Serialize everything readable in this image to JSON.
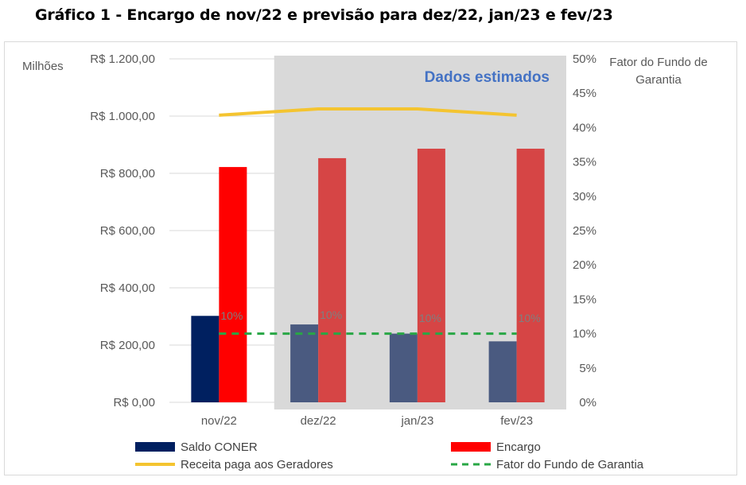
{
  "chart_data": {
    "type": "bar",
    "title": "Gráfico 1 - Encargo de nov/22 e previsão para dez/22, jan/23 e fev/23",
    "categories": [
      "nov/22",
      "dez/22",
      "jan/23",
      "fev/23"
    ],
    "left_axis": {
      "unit_label": "Milhões",
      "min": 0,
      "max": 1200,
      "step": 200,
      "tick_labels": [
        "R$ 0,00",
        "R$ 200,00",
        "R$ 400,00",
        "R$ 600,00",
        "R$ 800,00",
        "R$ 1.000,00",
        "R$ 1.200,00"
      ]
    },
    "right_axis": {
      "label": "Fator do Fundo de Garantia",
      "label_lines": [
        "Fator do Fundo de",
        "Garantia"
      ],
      "min": 0,
      "max": 50,
      "step": 5,
      "tick_labels": [
        "0%",
        "5%",
        "10%",
        "15%",
        "20%",
        "25%",
        "30%",
        "35%",
        "40%",
        "45%",
        "50%"
      ]
    },
    "shaded_region": {
      "label": "Dados estimados",
      "categories": [
        "dez/22",
        "jan/23",
        "fev/23"
      ],
      "color": "#d9d9d9",
      "label_color": "#4472c4"
    },
    "series": [
      {
        "name": "Saldo CONER",
        "kind": "bar",
        "axis": "left",
        "values": [
          302,
          272,
          240,
          213
        ],
        "colors": [
          "#002060",
          "#4a5a80",
          "#4a5a80",
          "#4a5a80"
        ],
        "legend_color": "#002060"
      },
      {
        "name": "Encargo",
        "kind": "bar",
        "axis": "left",
        "values": [
          822,
          853,
          886,
          886
        ],
        "colors": [
          "#ff0000",
          "#d64545",
          "#d64545",
          "#d64545"
        ],
        "legend_color": "#ff0000"
      },
      {
        "name": "Receita paga aos Geradores",
        "kind": "line",
        "axis": "left",
        "values": [
          1003,
          1025,
          1025,
          1003
        ],
        "color": "#f4c430"
      },
      {
        "name": "Fator do Fundo de Garantia",
        "kind": "dashed-line",
        "axis": "right",
        "values": [
          10,
          10,
          10,
          10
        ],
        "data_labels": [
          "10%",
          "10%",
          "10%",
          "10%"
        ],
        "color": "#28a745"
      }
    ],
    "gridlines": true,
    "legend_placement": "bottom"
  }
}
